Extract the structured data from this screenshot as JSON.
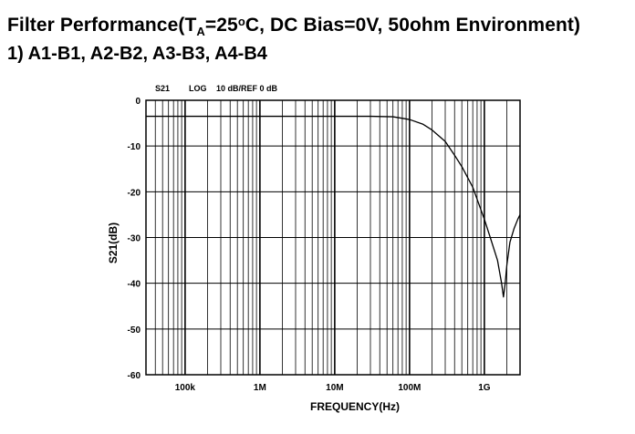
{
  "title": {
    "prefix": "Filter Performance(T",
    "sub": "A",
    "mid": "=25",
    "sup": "o",
    "suffix": "C, DC Bias=0V, 50ohm Environment)"
  },
  "subtitle": "1) A1-B1, A2-B2, A3-B3, A4-B4",
  "chart_data": {
    "type": "line",
    "header": [
      "S21",
      "LOG",
      "10 dB/REF 0 dB"
    ],
    "xlabel": "FREQUENCY(Hz)",
    "ylabel": "S21(dB)",
    "xscale": "log",
    "xlim": [
      30000,
      3000000000
    ],
    "ylim": [
      -60,
      0
    ],
    "yticks": [
      0,
      -10,
      -20,
      -30,
      -40,
      -50,
      -60
    ],
    "xticks": [
      {
        "value": 100000,
        "label": "100k"
      },
      {
        "value": 1000000,
        "label": "1M"
      },
      {
        "value": 10000000,
        "label": "10M"
      },
      {
        "value": 100000000,
        "label": "100M"
      },
      {
        "value": 1000000000,
        "label": "1G"
      }
    ],
    "grid": true,
    "series": [
      {
        "color": "#000000",
        "x": [
          30000,
          100000,
          1000000,
          10000000,
          30000000,
          60000000,
          100000000,
          150000000,
          200000000,
          300000000,
          400000000,
          500000000,
          700000000,
          1000000000,
          1200000000,
          1500000000,
          1700000000,
          1800000000,
          1900000000,
          2000000000,
          2200000000,
          2500000000,
          2800000000,
          3000000000
        ],
        "y": [
          -3.5,
          -3.5,
          -3.5,
          -3.5,
          -3.5,
          -3.6,
          -4.2,
          -5.2,
          -6.5,
          -9,
          -12,
          -14.5,
          -19,
          -26,
          -30,
          -35,
          -40,
          -43,
          -40,
          -36,
          -31,
          -28,
          -26,
          -25
        ]
      }
    ]
  }
}
